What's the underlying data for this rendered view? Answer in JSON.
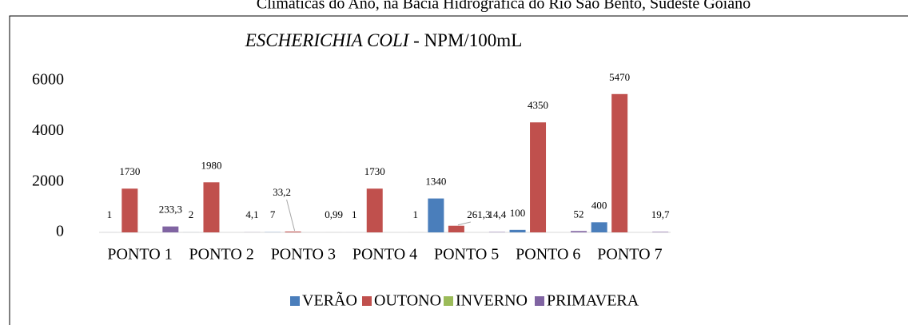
{
  "caption": "Climáticas do Ano, na Bacia Hidrográfica do Rio São Bento, Sudeste Goiano",
  "chart_data": {
    "type": "bar",
    "title_italic": "ESCHERICHIA COLI",
    "title_rest": " - NPM/100mL",
    "categories": [
      "PONTO 1",
      "PONTO 2",
      "PONTO 3",
      "PONTO 4",
      "PONTO 5",
      "PONTO 6",
      "PONTO 7"
    ],
    "series": [
      {
        "name": "VERÃO",
        "color": "#4a7ebb",
        "values": [
          1,
          2,
          7,
          1,
          1340,
          100,
          400
        ]
      },
      {
        "name": "OUTONO",
        "color": "#c0504d",
        "values": [
          1730,
          1980,
          33.2,
          1730,
          261.3,
          4350,
          5470
        ]
      },
      {
        "name": "INVERNO",
        "color": "#9bbb59",
        "values": [
          null,
          null,
          null,
          null,
          null,
          null,
          null
        ]
      },
      {
        "name": "PRIMAVERA",
        "color": "#8064a2",
        "values": [
          233.3,
          4.1,
          0.99,
          1,
          14.4,
          52,
          19.7
        ],
        "value_labels": [
          "233,3",
          "4,1",
          "0,99",
          "1",
          "14,4",
          "52",
          "19,7"
        ]
      }
    ],
    "outono_value_labels": [
      "1730",
      "1980",
      "33,2",
      "1730",
      "261,3",
      "4350",
      "5470"
    ],
    "ylim": [
      0,
      6000
    ],
    "yticks": [
      0,
      2000,
      4000,
      6000
    ],
    "grid": false,
    "legend": "bottom"
  }
}
